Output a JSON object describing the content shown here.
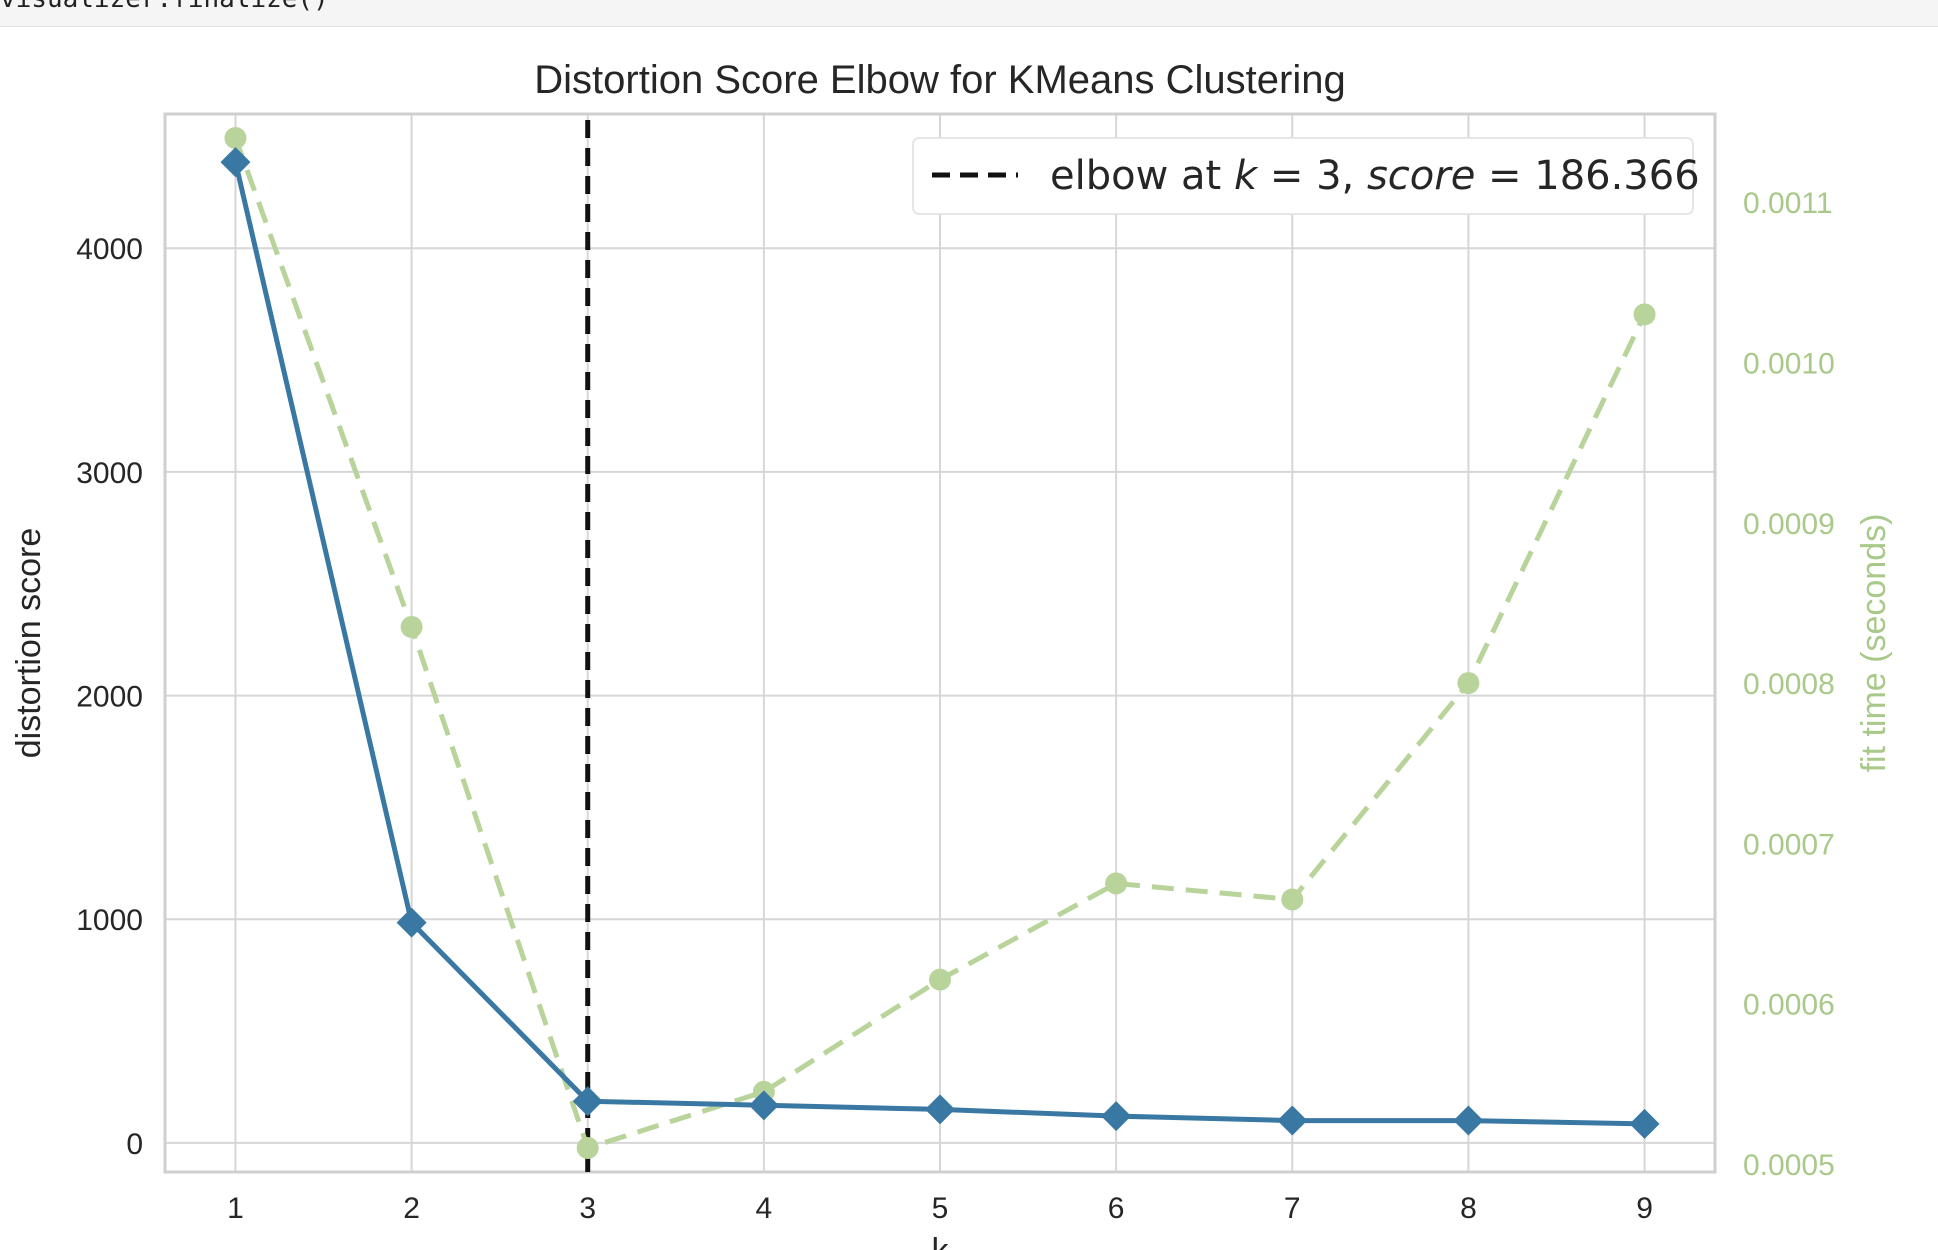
{
  "code_cell": {
    "text": "visualizer.finalize()"
  },
  "chart_data": {
    "type": "line",
    "title": "Distortion Score Elbow for KMeans Clustering",
    "xlabel": "k",
    "ylabel": "distortion score",
    "y2label": "fit time (seconds)",
    "x": [
      1,
      2,
      3,
      4,
      5,
      6,
      7,
      8,
      9
    ],
    "xlim": [
      0.6,
      9.4
    ],
    "ylim": [
      -130,
      4600
    ],
    "y2lim": [
      0.000495,
      0.001155
    ],
    "yticks": [
      0,
      1000,
      2000,
      3000,
      4000
    ],
    "y2ticks": [
      "0.0005",
      "0.0006",
      "0.0007",
      "0.0008",
      "0.0009",
      "0.0010",
      "0.0011"
    ],
    "grid": true,
    "series": [
      {
        "key": "distortion",
        "axis": "left",
        "style": "solid",
        "marker": "diamond",
        "color": "#3a78a4",
        "values": [
          4385,
          985,
          186.366,
          168,
          150,
          120,
          100,
          100,
          85
        ]
      },
      {
        "key": "fit_time",
        "axis": "right",
        "style": "dashed",
        "marker": "circle",
        "color": "#b8d49b",
        "values": [
          0.00114,
          0.000835,
          0.00051,
          0.000545,
          0.000615,
          0.000675,
          0.000665,
          0.0008,
          0.00103
        ]
      }
    ],
    "elbow": {
      "k": 3,
      "score": 186.366
    },
    "legend": {
      "placement": "top-right",
      "prefix": "elbow at ",
      "k_symbol": "k",
      "eq": " = ",
      "k_value": "3",
      "sep": ", ",
      "score_symbol": "score",
      "score_value": "186.366"
    }
  }
}
